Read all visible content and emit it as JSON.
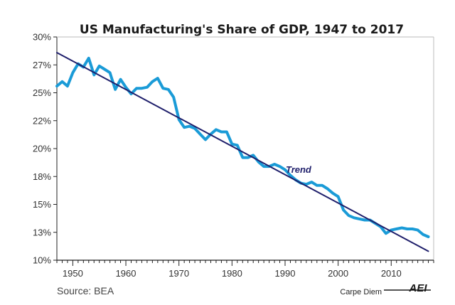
{
  "chart_data": {
    "type": "line",
    "title": "US Manufacturing's Share of GDP, 1947 to 2017",
    "xlabel": "",
    "ylabel": "",
    "xlim": [
      1947,
      2018
    ],
    "ylim": [
      10,
      30
    ],
    "x_ticks": [
      1950,
      1960,
      1970,
      1980,
      1990,
      2000,
      2010
    ],
    "x_tick_labels": [
      "1950",
      "1960",
      "1970",
      "1980",
      "1990",
      "2000",
      "2010"
    ],
    "y_ticks": [
      10,
      12.5,
      15,
      17.5,
      20,
      22.5,
      25,
      27.5,
      30
    ],
    "y_tick_labels": [
      "10%",
      "13%",
      "15%",
      "18%",
      "20%",
      "22%",
      "25%",
      "27%",
      "30%"
    ],
    "grid": false,
    "series": [
      {
        "name": "",
        "color": "#1a9bd7",
        "x": [
          1947,
          1948,
          1949,
          1950,
          1951,
          1952,
          1953,
          1954,
          1955,
          1956,
          1957,
          1958,
          1959,
          1960,
          1961,
          1962,
          1963,
          1964,
          1965,
          1966,
          1967,
          1968,
          1969,
          1970,
          1971,
          1972,
          1973,
          1974,
          1975,
          1976,
          1977,
          1978,
          1979,
          1980,
          1981,
          1982,
          1983,
          1984,
          1985,
          1986,
          1987,
          1988,
          1989,
          1990,
          1991,
          1992,
          1993,
          1994,
          1995,
          1996,
          1997,
          1998,
          1999,
          2000,
          2001,
          2002,
          2003,
          2004,
          2005,
          2006,
          2007,
          2008,
          2009,
          2010,
          2011,
          2012,
          2013,
          2014,
          2015,
          2016,
          2017
        ],
        "values": [
          25.6,
          26.0,
          25.6,
          26.8,
          27.6,
          27.3,
          28.1,
          26.6,
          27.4,
          27.1,
          26.8,
          25.3,
          26.2,
          25.5,
          24.9,
          25.4,
          25.4,
          25.5,
          26.0,
          26.3,
          25.4,
          25.3,
          24.6,
          22.6,
          21.9,
          22.0,
          21.8,
          21.3,
          20.8,
          21.3,
          21.7,
          21.5,
          21.5,
          20.4,
          20.3,
          19.2,
          19.2,
          19.4,
          18.8,
          18.4,
          18.4,
          18.6,
          18.4,
          18.1,
          17.6,
          17.2,
          16.9,
          16.8,
          17.0,
          16.7,
          16.7,
          16.4,
          16.0,
          15.7,
          14.5,
          14.0,
          13.8,
          13.7,
          13.6,
          13.6,
          13.3,
          13.0,
          12.4,
          12.7,
          12.8,
          12.9,
          12.8,
          12.8,
          12.7,
          12.3,
          12.1
        ]
      },
      {
        "name": "Trend",
        "color": "#1f1f6b",
        "x": [
          1947,
          2017
        ],
        "values": [
          28.6,
          10.8
        ]
      }
    ],
    "source": "Source: BEA",
    "branding": "Carpe Diem",
    "logo": "AEI"
  }
}
